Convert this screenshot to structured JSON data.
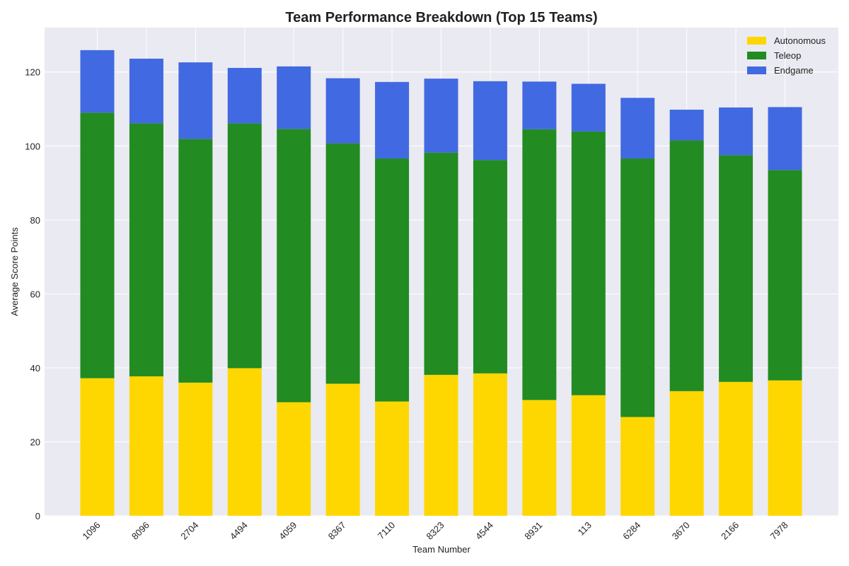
{
  "chart_data": {
    "type": "bar",
    "stacked": true,
    "title": "Team Performance Breakdown (Top 15 Teams)",
    "xlabel": "Team Number",
    "ylabel": "Average Score Points",
    "ylim": [
      0,
      132
    ],
    "yticks": [
      0,
      20,
      40,
      60,
      80,
      100,
      120
    ],
    "grid": true,
    "legend_position": "top-right",
    "categories": [
      "1096",
      "8096",
      "2704",
      "4494",
      "4059",
      "8367",
      "7110",
      "8323",
      "4544",
      "8931",
      "113",
      "6284",
      "3670",
      "2166",
      "7978"
    ],
    "series": [
      {
        "name": "Autonomous",
        "color": "#FFD700",
        "values": [
          37.2,
          37.7,
          36.0,
          39.9,
          30.7,
          35.7,
          30.9,
          38.1,
          38.5,
          31.3,
          32.6,
          26.7,
          33.7,
          36.2,
          36.6
        ]
      },
      {
        "name": "Teleop",
        "color": "#228B22",
        "values": [
          71.8,
          68.4,
          65.9,
          66.2,
          73.9,
          65.0,
          65.7,
          60.1,
          57.7,
          73.2,
          71.3,
          69.9,
          67.8,
          61.3,
          56.9
        ]
      },
      {
        "name": "Endgame",
        "color": "#4169E1",
        "values": [
          16.9,
          17.5,
          20.7,
          15.0,
          16.9,
          17.6,
          20.7,
          20.0,
          21.3,
          12.9,
          12.9,
          16.4,
          8.3,
          12.9,
          17.0
        ]
      }
    ]
  }
}
